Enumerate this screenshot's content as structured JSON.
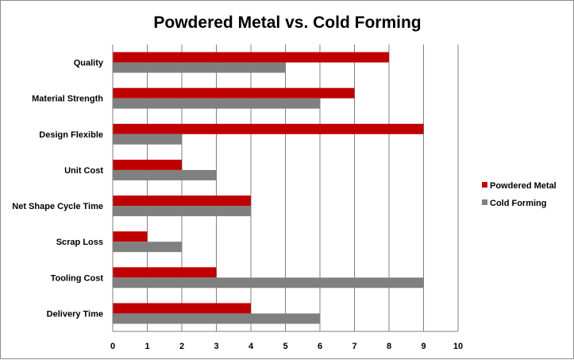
{
  "chart_data": {
    "type": "bar",
    "orientation": "horizontal",
    "title": "Powdered Metal vs. Cold Forming",
    "categories": [
      "Quality",
      "Material Strength",
      "Design Flexible",
      "Unit Cost",
      "Net Shape Cycle Time",
      "Scrap Loss",
      "Tooling Cost",
      "Delivery Time"
    ],
    "series": [
      {
        "name": "Powdered Metal",
        "color": "#c00000",
        "values": [
          8,
          7,
          9,
          2,
          4,
          1,
          3,
          4
        ]
      },
      {
        "name": "Cold Forming",
        "color": "#808080",
        "values": [
          5,
          6,
          2,
          3,
          4,
          2,
          9,
          6
        ]
      }
    ],
    "xlim": [
      0,
      10
    ],
    "xticks": [
      "0",
      "1",
      "2",
      "3",
      "4",
      "5",
      "6",
      "7",
      "8",
      "9",
      "10"
    ],
    "grid": true,
    "legend_position": "right"
  }
}
